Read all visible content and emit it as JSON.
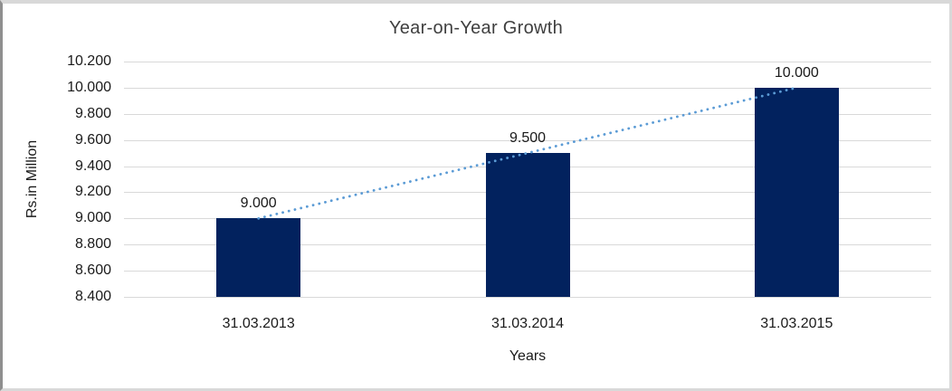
{
  "chart_data": {
    "type": "bar",
    "title": "Year-on-Year Growth",
    "categories": [
      "31.03.2013",
      "31.03.2014",
      "31.03.2015"
    ],
    "values": [
      9000,
      9500,
      10000
    ],
    "data_labels": [
      "9.000",
      "9.500",
      "10.000"
    ],
    "xlabel": "Years",
    "ylabel": "Rs.in Million",
    "ylim": [
      8400,
      10200
    ],
    "ytick_step": 200,
    "ytick_labels": [
      "10.200",
      "10.000",
      "9.800",
      "9.600",
      "9.400",
      "9.200",
      "9.000",
      "8.800",
      "8.600",
      "8.400"
    ],
    "grid": true,
    "legend": false,
    "grid_color": "#d9d9d9",
    "bar_color": "#02225e",
    "trendline": {
      "type": "linear",
      "style": "dotted",
      "color": "#5b9bd5"
    }
  }
}
